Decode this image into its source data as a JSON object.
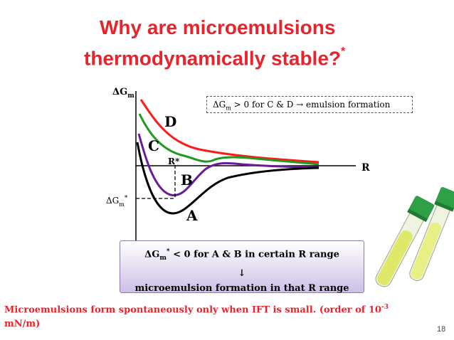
{
  "slide": {
    "title_line1": "Why are microemulsions",
    "title_line2": "thermodynamically stable?",
    "title_marker": "*",
    "page_number": "18"
  },
  "diagram": {
    "y_axis_symbol": "ΔG",
    "y_axis_subscript": "m",
    "x_axis_label": "R",
    "r_star_label": "R*",
    "min_label_symbol": "ΔG",
    "min_label_subscript": "m",
    "min_label_marker": "*",
    "curve_labels": {
      "A": "A",
      "B": "B",
      "C": "C",
      "D": "D"
    },
    "colors": {
      "A": "#000000",
      "B": "#6a1b9a",
      "C": "#1e9a1e",
      "D": "#ff1a1a"
    },
    "annotation": {
      "prefix": "ΔG",
      "subscript": "m",
      "text": " > 0 for C & D",
      "arrow": " → ",
      "suffix": "emulsion formation"
    }
  },
  "result": {
    "line1_prefix": "ΔG",
    "line1_subscript": "m",
    "line1_marker": "*",
    "line1_suffix": " < 0 for A & B in certain R range",
    "arrow": "↓",
    "line3": "microemulsion formation in that R range"
  },
  "footer": {
    "text": "Microemulsions form spontaneously only when IFT is small. (order of 10",
    "exponent": "-3",
    "unit": "mN/m)"
  }
}
